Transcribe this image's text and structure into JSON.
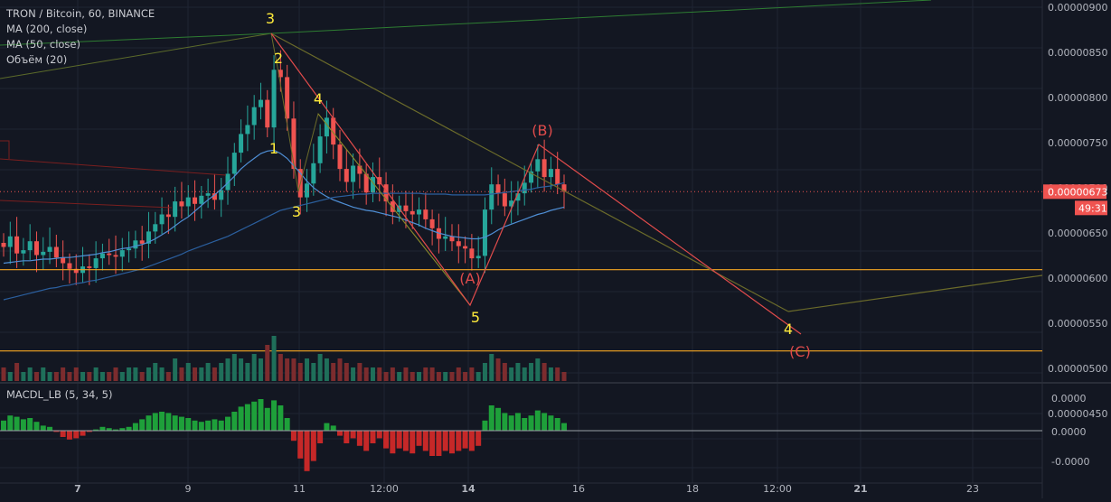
{
  "legend": {
    "symbol": "TRON / Bitcoin, 60, BINANCE",
    "ma200": "MA (200, close)",
    "ma50": "MA (50, close)",
    "volume": "Объём (20)"
  },
  "macd_legend": "MACDL_LB (5, 34, 5)",
  "colors": {
    "background": "#131722",
    "grid": "#1f2433",
    "up": "#26a69a",
    "down": "#ef5350",
    "wave_yellow": "#ffeb3b",
    "wave_red": "#e04b4b",
    "ma50": "#4f8fd6",
    "ma200": "#2b5f9e",
    "support": "#f5a623",
    "trend_olive": "#6b6b2a",
    "trend_green": "#2e7d32",
    "price_tag": "#ef5350"
  },
  "chart_data": [
    {
      "type": "candlestick",
      "ylim": [
        4e-07,
        9e-07
      ],
      "yticks": [
        "0.00000900",
        "0.00000850",
        "0.00000800",
        "0.00000750",
        "0.00000700",
        "0.00000650",
        "0.00000600",
        "0.00000550",
        "0.00000500",
        "0.00000450"
      ],
      "xticks": [
        "7",
        "9",
        "11",
        "12:00",
        "14",
        "16",
        "18",
        "12:00",
        "21",
        "23"
      ],
      "current_price": "0.00000673",
      "countdown": "49:31",
      "support_levels": [
        5.77e-07,
        4.77e-07
      ],
      "close_series": [
        6.05,
        6.18,
        5.97,
        6.01,
        6.12,
        5.95,
        5.99,
        6.05,
        5.92,
        5.85,
        5.78,
        5.73,
        5.81,
        5.79,
        5.91,
        5.97,
        5.95,
        5.93,
        6.01,
        6.03,
        6.13,
        6.09,
        6.24,
        6.33,
        6.45,
        6.42,
        6.61,
        6.55,
        6.66,
        6.58,
        6.68,
        6.71,
        6.63,
        6.75,
        6.95,
        7.21,
        7.44,
        7.55,
        7.77,
        7.86,
        7.52,
        8.23,
        8.14,
        7.63,
        7.01,
        6.66,
        6.83,
        7.08,
        7.41,
        7.64,
        7.31,
        7.01,
        6.85,
        7.05,
        6.95,
        6.72,
        6.91,
        6.82,
        6.61,
        6.48,
        6.56,
        6.49,
        6.45,
        6.51,
        6.39,
        6.28,
        6.15,
        6.18,
        6.12,
        6.06,
        6.03,
        5.91,
        5.94,
        6.51,
        6.82,
        6.71,
        6.55,
        6.62,
        6.71,
        6.84,
        6.98,
        7.13,
        6.91,
        7.01,
        6.82,
        6.73
      ],
      "ma50": [
        5.85,
        5.86,
        5.87,
        5.88,
        5.88,
        5.89,
        5.9,
        5.9,
        5.91,
        5.92,
        5.92,
        5.93,
        5.94,
        5.95,
        5.96,
        5.98,
        5.99,
        6.01,
        6.03,
        6.04,
        6.06,
        6.08,
        6.11,
        6.15,
        6.2,
        6.25,
        6.31,
        6.37,
        6.42,
        6.49,
        6.56,
        6.63,
        6.69,
        6.76,
        6.84,
        6.92,
        7.01,
        7.08,
        7.14,
        7.2,
        7.23,
        7.24,
        7.2,
        7.14,
        7.05,
        6.96,
        6.86,
        6.78,
        6.72,
        6.67,
        6.63,
        6.6,
        6.57,
        6.54,
        6.52,
        6.5,
        6.49,
        6.47,
        6.45,
        6.43,
        6.41,
        6.38,
        6.35,
        6.32,
        6.28,
        6.25,
        6.22,
        6.2,
        6.18,
        6.17,
        6.16,
        6.15,
        6.15,
        6.17,
        6.21,
        6.26,
        6.3,
        6.33,
        6.36,
        6.39,
        6.42,
        6.45,
        6.47,
        6.5,
        6.52,
        6.54
      ],
      "ma200": [
        5.4,
        5.42,
        5.44,
        5.46,
        5.48,
        5.5,
        5.52,
        5.54,
        5.55,
        5.57,
        5.58,
        5.6,
        5.61,
        5.63,
        5.64,
        5.66,
        5.68,
        5.7,
        5.72,
        5.74,
        5.76,
        5.78,
        5.81,
        5.84,
        5.87,
        5.9,
        5.93,
        5.96,
        6,
        6.03,
        6.06,
        6.09,
        6.12,
        6.15,
        6.18,
        6.22,
        6.26,
        6.3,
        6.34,
        6.38,
        6.42,
        6.46,
        6.5,
        6.52,
        6.54,
        6.56,
        6.58,
        6.6,
        6.62,
        6.64,
        6.66,
        6.67,
        6.68,
        6.69,
        6.7,
        6.7,
        6.71,
        6.71,
        6.71,
        6.71,
        6.71,
        6.71,
        6.71,
        6.71,
        6.7,
        6.7,
        6.7,
        6.7,
        6.69,
        6.69,
        6.69,
        6.69,
        6.69,
        6.69,
        6.7,
        6.71,
        6.72,
        6.73,
        6.74,
        6.75,
        6.76,
        6.78,
        6.79,
        6.8,
        6.82,
        6.84
      ],
      "volume": [
        3,
        2,
        4,
        2,
        3,
        2,
        3,
        2,
        2,
        3,
        2,
        3,
        2,
        2,
        3,
        2,
        2,
        3,
        2,
        3,
        3,
        2,
        3,
        4,
        3,
        2,
        5,
        3,
        4,
        3,
        3,
        4,
        3,
        4,
        5,
        6,
        5,
        4,
        6,
        5,
        8,
        10,
        6,
        5,
        5,
        4,
        5,
        4,
        6,
        5,
        4,
        5,
        4,
        3,
        4,
        3,
        3,
        3,
        2,
        3,
        2,
        3,
        2,
        2,
        3,
        3,
        2,
        2,
        2,
        3,
        2,
        3,
        2,
        4,
        6,
        5,
        4,
        3,
        4,
        3,
        4,
        5,
        4,
        3,
        3,
        2
      ],
      "macd": [
        0.4,
        0.6,
        0.55,
        0.45,
        0.5,
        0.35,
        0.2,
        0.15,
        -0.05,
        -0.25,
        -0.35,
        -0.3,
        -0.2,
        -0.05,
        0.05,
        0.15,
        0.1,
        0.05,
        0.1,
        0.15,
        0.3,
        0.45,
        0.6,
        0.7,
        0.75,
        0.7,
        0.6,
        0.55,
        0.5,
        0.4,
        0.35,
        0.4,
        0.45,
        0.4,
        0.55,
        0.75,
        0.95,
        1.05,
        1.15,
        1.25,
        0.9,
        1.2,
        1.0,
        0.5,
        -0.4,
        -1.1,
        -1.6,
        -1.2,
        -0.5,
        0.3,
        0.2,
        -0.2,
        -0.5,
        -0.3,
        -0.6,
        -0.8,
        -0.5,
        -0.3,
        -0.7,
        -0.9,
        -0.7,
        -0.8,
        -0.9,
        -0.6,
        -0.8,
        -1.0,
        -1.0,
        -0.8,
        -0.9,
        -0.8,
        -0.7,
        -0.8,
        -0.6,
        0.4,
        1.0,
        0.9,
        0.7,
        0.6,
        0.7,
        0.5,
        0.6,
        0.8,
        0.7,
        0.6,
        0.5,
        0.3
      ],
      "macd_ticks": [
        "0.0000",
        "0.0000",
        "-0.0000"
      ],
      "wave_labels_yellow": [
        "3",
        "2",
        "1",
        "4",
        "3",
        "5",
        "4"
      ],
      "wave_labels_red": [
        "(A)",
        "(B)",
        "(C)"
      ]
    }
  ]
}
